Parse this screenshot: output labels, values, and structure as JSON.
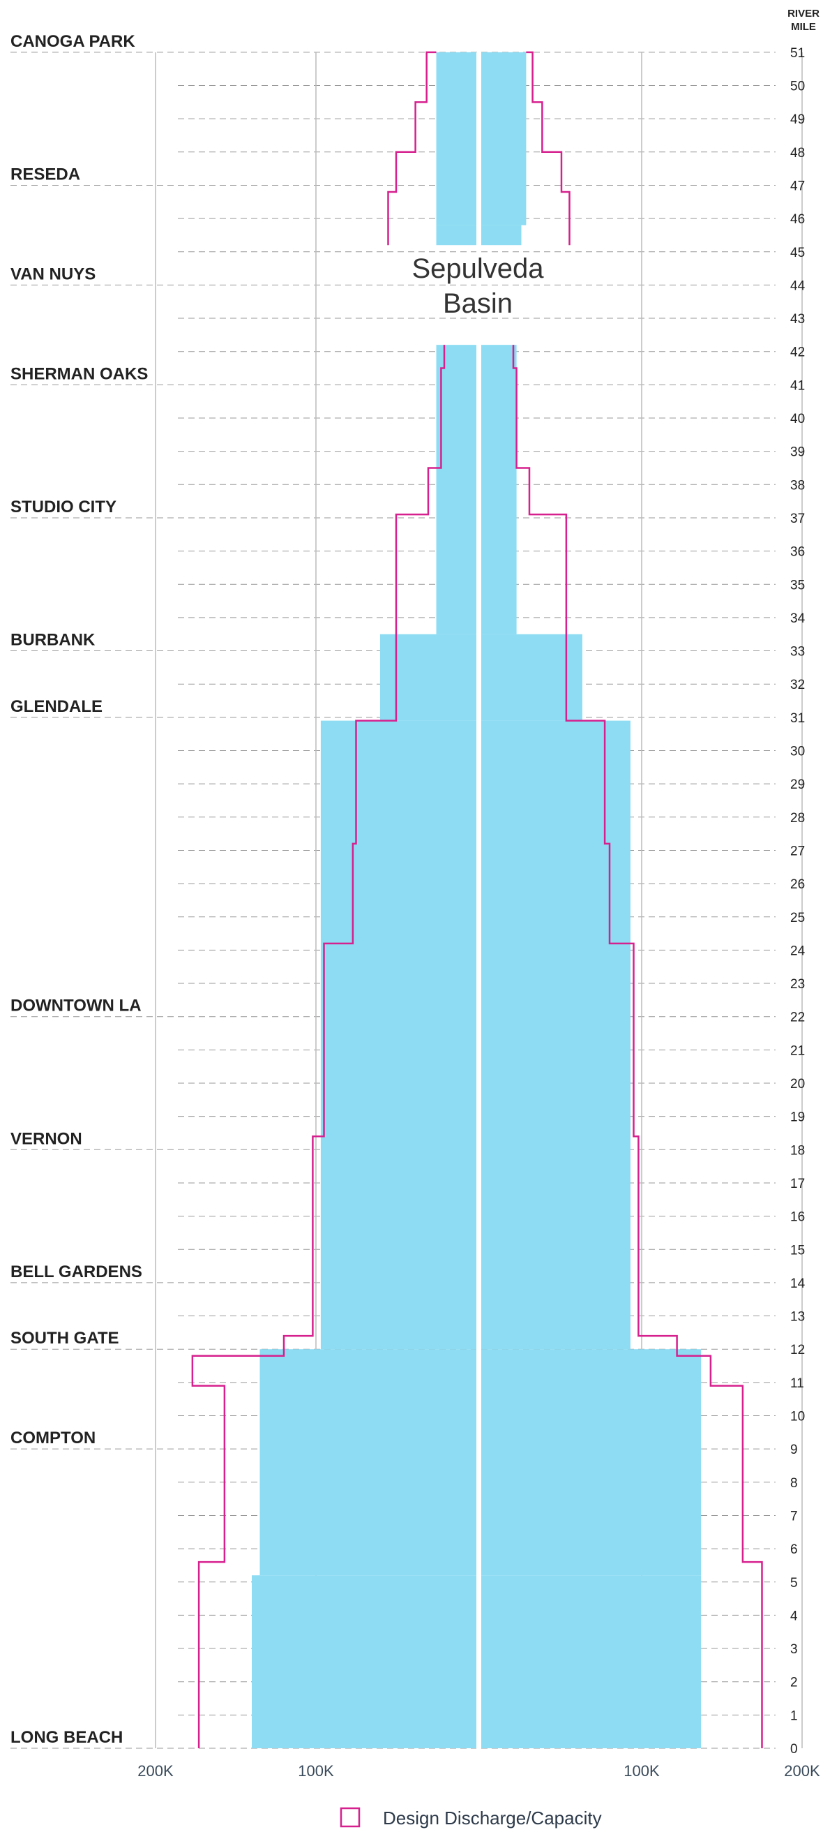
{
  "colors": {
    "channel_fill": "#8ddcf3",
    "design_line": "#d6208e",
    "grid": "#999999",
    "gap": "#ffffff"
  },
  "header": {
    "line1": "RIVER",
    "line2": "MILE"
  },
  "basin_label": {
    "line1": "Sepulveda",
    "line2": "Basin"
  },
  "legend": {
    "label": "Design Discharge/Capacity"
  },
  "chart_data": {
    "type": "area",
    "orientation": "mirrored-vertical",
    "y_axis": {
      "label": "RIVER MILE",
      "range": [
        0,
        51
      ],
      "ticks": [
        0,
        1,
        2,
        3,
        4,
        5,
        6,
        7,
        8,
        9,
        10,
        11,
        12,
        13,
        14,
        15,
        16,
        17,
        18,
        19,
        20,
        21,
        22,
        23,
        24,
        25,
        26,
        27,
        28,
        29,
        30,
        31,
        32,
        33,
        34,
        35,
        36,
        37,
        38,
        39,
        40,
        41,
        42,
        43,
        44,
        45,
        46,
        47,
        48,
        49,
        50,
        51
      ]
    },
    "x_axis": {
      "tick_labels": [
        "200K",
        "100K",
        "100K",
        "200K"
      ],
      "tick_values": [
        -200000,
        -100000,
        100000,
        200000
      ],
      "range": [
        -200000,
        200000
      ],
      "grid": true
    },
    "locations": [
      {
        "name": "CANOGA PARK",
        "mile": 51
      },
      {
        "name": "RESEDA",
        "mile": 47
      },
      {
        "name": "VAN NUYS",
        "mile": 44
      },
      {
        "name": "SHERMAN OAKS",
        "mile": 41
      },
      {
        "name": "STUDIO CITY",
        "mile": 37
      },
      {
        "name": "BURBANK",
        "mile": 33
      },
      {
        "name": "GLENDALE",
        "mile": 31
      },
      {
        "name": "DOWNTOWN LA",
        "mile": 22
      },
      {
        "name": "VERNON",
        "mile": 18
      },
      {
        "name": "BELL GARDENS",
        "mile": 14
      },
      {
        "name": "SOUTH GATE",
        "mile": 12
      },
      {
        "name": "COMPTON",
        "mile": 9
      },
      {
        "name": "LONG BEACH",
        "mile": 0
      }
    ],
    "annotations": [
      {
        "text": "Sepulveda Basin",
        "mile_range": [
          42.5,
          45
        ]
      }
    ],
    "series": [
      {
        "name": "Capacity",
        "kind": "filled-area",
        "segments": [
          [
            {
              "from": 45.8,
              "to": 51,
              "left": 25000,
              "right": 28000
            },
            {
              "from": 45.2,
              "to": 45.8,
              "left": 25000,
              "right": 25000
            }
          ],
          [
            {
              "from": 33.5,
              "to": 42.2,
              "left": 25000,
              "right": 22000
            },
            {
              "from": 30.9,
              "to": 33.5,
              "left": 60000,
              "right": 63000
            },
            {
              "from": 12,
              "to": 30.9,
              "left": 97000,
              "right": 93000
            },
            {
              "from": 5.2,
              "to": 12,
              "left": 135000,
              "right": 137000
            },
            {
              "from": 0,
              "to": 5.2,
              "left": 140000,
              "right": 137000
            }
          ]
        ]
      },
      {
        "name": "Design Discharge/Capacity",
        "kind": "outline",
        "segments": [
          [
            {
              "from": 51,
              "to": 51,
              "left": 25000,
              "right": 28000
            },
            {
              "from": 49.5,
              "to": 51,
              "left": 31000,
              "right": 32000
            },
            {
              "from": 48,
              "to": 49.5,
              "left": 38000,
              "right": 38000
            },
            {
              "from": 46.8,
              "to": 48,
              "left": 50000,
              "right": 50000
            },
            {
              "from": 45.2,
              "to": 46.8,
              "left": 55000,
              "right": 55000
            }
          ],
          [
            {
              "from": 41.5,
              "to": 42.2,
              "left": 20000,
              "right": 20000
            },
            {
              "from": 38.5,
              "to": 41.5,
              "left": 22000,
              "right": 22000
            },
            {
              "from": 37.1,
              "to": 38.5,
              "left": 30000,
              "right": 30000
            },
            {
              "from": 33.5,
              "to": 37.1,
              "left": 50000,
              "right": 53000
            },
            {
              "from": 30.9,
              "to": 33.5,
              "left": 50000,
              "right": 53000
            },
            {
              "from": 27.2,
              "to": 30.9,
              "left": 75000,
              "right": 77000
            },
            {
              "from": 24.2,
              "to": 27.2,
              "left": 77000,
              "right": 80000
            },
            {
              "from": 18.4,
              "to": 24.2,
              "left": 95000,
              "right": 95000
            },
            {
              "from": 12.4,
              "to": 18.4,
              "left": 102000,
              "right": 98000
            },
            {
              "from": 11.8,
              "to": 12.4,
              "left": 120000,
              "right": 122000
            },
            {
              "from": 10.9,
              "to": 11.8,
              "left": 177000,
              "right": 143000
            },
            {
              "from": 5.6,
              "to": 10.9,
              "left": 157000,
              "right": 163000
            },
            {
              "from": 0,
              "to": 5.6,
              "left": 173000,
              "right": 175000
            }
          ]
        ]
      }
    ]
  }
}
